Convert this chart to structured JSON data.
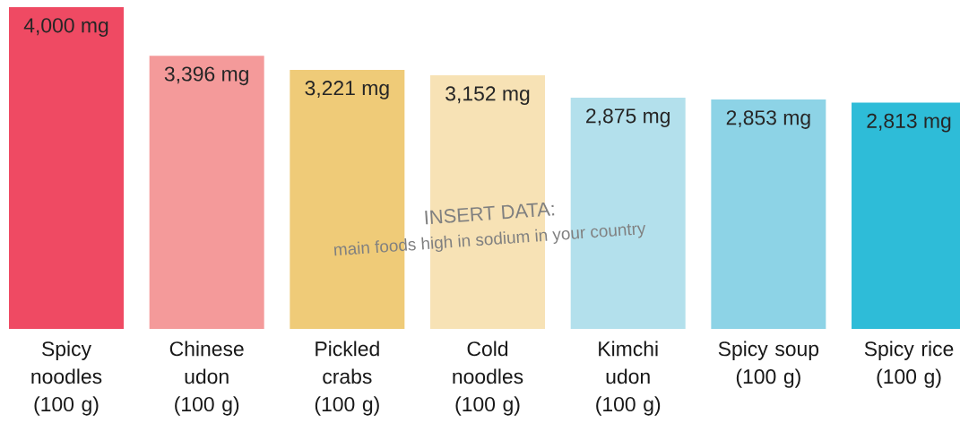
{
  "chart_data": {
    "type": "bar",
    "categories": [
      "Spicy noodles (100 g)",
      "Chinese udon (100 g)",
      "Pickled crabs (100 g)",
      "Cold noodles (100 g)",
      "Kimchi udon (100 g)",
      "Spicy soup (100 g)",
      "Spicy rice (100 g)"
    ],
    "values": [
      4000,
      3396,
      3221,
      3152,
      2875,
      2853,
      2813
    ],
    "value_labels": [
      "4,000 mg",
      "3,396 mg",
      "3,221 mg",
      "3,152 mg",
      "2,875 mg",
      "2,853 mg",
      "2,813 mg"
    ],
    "colors": [
      "#ef4a63",
      "#f49a9a",
      "#efcb78",
      "#f7e2b5",
      "#b3e0ec",
      "#8dd3e6",
      "#2ebcd8"
    ],
    "annotations": [
      "INSERT DATA:",
      "main foods high in sodium in your country"
    ]
  }
}
